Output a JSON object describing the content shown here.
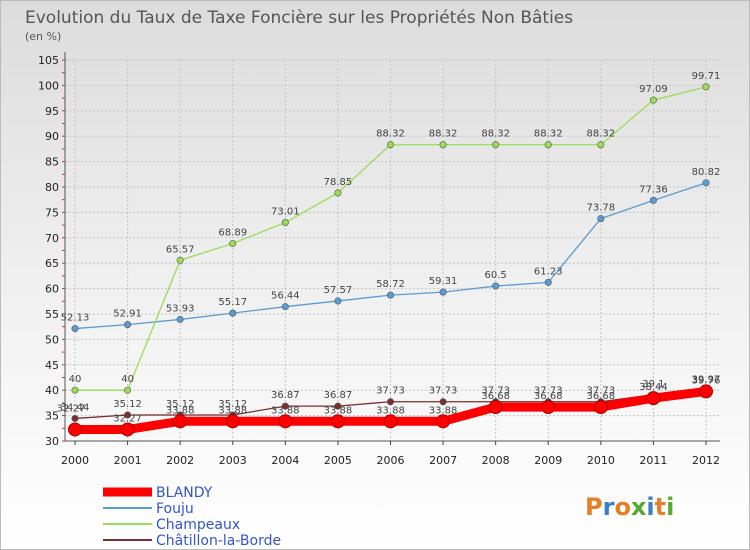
{
  "chart_data": {
    "type": "line",
    "title": "Evolution du Taux de Taxe Foncière sur les Propriétés Non Bâties",
    "subtitle": "(en %)",
    "x": [
      "2000",
      "2001",
      "2002",
      "2003",
      "2004",
      "2005",
      "2006",
      "2007",
      "2008",
      "2009",
      "2010",
      "2011",
      "2012"
    ],
    "ylim": [
      30,
      105
    ],
    "yticks": [
      30,
      35,
      40,
      45,
      50,
      55,
      60,
      65,
      70,
      75,
      80,
      85,
      90,
      95,
      100,
      105
    ],
    "grid": true,
    "legend_position": "bottom-left",
    "series": [
      {
        "name": "BLANDY",
        "color": "#ff0000",
        "values": [
          32.27,
          32.27,
          33.88,
          33.88,
          33.88,
          33.88,
          33.88,
          33.88,
          36.68,
          36.68,
          36.68,
          38.44,
          39.76
        ],
        "labels": [
          "",
          "32.27",
          "33.88",
          "33.88",
          "33.88",
          "33.88",
          "33.88",
          "33.88",
          "36.68",
          "36.68",
          "36.68",
          "38.44",
          "39.76"
        ]
      },
      {
        "name": "Fouju",
        "color": "#5b9bd5",
        "values": [
          52.13,
          52.91,
          53.93,
          55.17,
          56.44,
          57.57,
          58.72,
          59.31,
          60.5,
          61.23,
          73.78,
          77.36,
          80.82
        ],
        "labels": [
          "52.13",
          "52.91",
          "53.93",
          "55.17",
          "56.44",
          "57.57",
          "58.72",
          "59.31",
          "60.5",
          "61.23",
          "73.78",
          "77.36",
          "80.82"
        ]
      },
      {
        "name": "Champeaux",
        "color": "#99dd55",
        "values": [
          40,
          40,
          65.57,
          68.89,
          73.01,
          78.85,
          88.32,
          88.32,
          88.32,
          88.32,
          88.32,
          97.09,
          99.71
        ],
        "labels": [
          "40",
          "40",
          "65.57",
          "68.89",
          "73.01",
          "78.85",
          "88.32",
          "88.32",
          "88.32",
          "88.32",
          "88.32",
          "97.09",
          "99.71"
        ]
      },
      {
        "name": "Châtillon-la-Borde",
        "color": "#7a2e2e",
        "values": [
          34.44,
          35.12,
          35.12,
          35.12,
          36.87,
          36.87,
          37.73,
          37.73,
          37.73,
          37.73,
          37.73,
          39.1,
          39.97
        ],
        "labels": [
          "34.44",
          "35.12",
          "35.12",
          "35.12",
          "36.87",
          "36.87",
          "37.73",
          "37.73",
          "37.73",
          "37.73",
          "37.73",
          "39.1",
          "39.97"
        ]
      }
    ],
    "corner_labels": [
      "32.27"
    ]
  },
  "logo": {
    "text": "Proxiti"
  }
}
